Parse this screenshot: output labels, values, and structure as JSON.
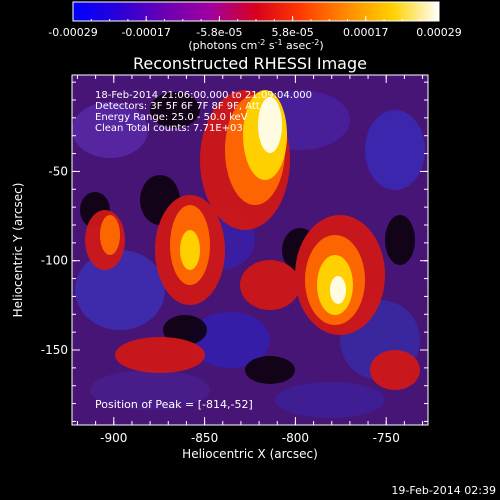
{
  "colorbar": {
    "tick_labels": [
      "-0.00029",
      "-0.00017",
      "-5.8e-05",
      "5.8e-05",
      "0.00017",
      "0.00029"
    ],
    "unit_parts": [
      "(photons cm",
      "-2",
      " s",
      "-1",
      " asec",
      "-2",
      ")"
    ],
    "colormap": [
      "#0000ff",
      "#2a00d8",
      "#6a00b4",
      "#a000a0",
      "#d8001e",
      "#ff3c00",
      "#ff8c00",
      "#ffd200",
      "#ffffff"
    ]
  },
  "image": {
    "title": "Reconstructed RHESSI Image",
    "info_lines": [
      "18-Feb-2014 21:06:00.000 to 21:09:04.000",
      "Detectors: 3F 5F 6F 7F 8F 9F, Att 0",
      "Energy Range: 25.0 - 50.0 keV",
      "Clean    Total counts: 7.71E+03"
    ],
    "peak_label": "Position of Peak = [-814,-52]",
    "x_label": "Heliocentric X (arcsec)",
    "y_label": "Heliocentric Y (arcsec)",
    "x_ticks": [
      "-900",
      "-850",
      "-800",
      "-750"
    ],
    "y_ticks": [
      "-50",
      "-100",
      "-150"
    ],
    "x_range_arcsec": [
      -923,
      -727
    ],
    "y_range_arcsec": [
      -192,
      4
    ],
    "x_tick_values": [
      -900,
      -850,
      -800,
      -750
    ],
    "y_tick_values": [
      -50,
      -100,
      -150
    ]
  },
  "footer": {
    "timestamp": "19-Feb-2014 02:39"
  }
}
